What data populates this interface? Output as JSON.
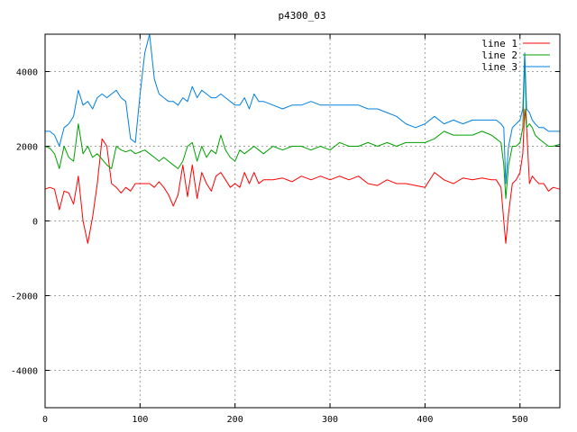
{
  "chart_data": {
    "type": "line",
    "title": "p4300_03",
    "xlabel": "",
    "ylabel": "",
    "xlim": [
      0,
      542
    ],
    "ylim": [
      -5000,
      5000
    ],
    "xticks": [
      0,
      100,
      200,
      300,
      400,
      500
    ],
    "yticks": [
      -4000,
      -2000,
      0,
      2000,
      4000
    ],
    "grid": true,
    "legend_position": "top-right",
    "series": [
      {
        "name": "line 1",
        "color": "#ff0000",
        "x": [
          0,
          5,
          10,
          15,
          20,
          25,
          30,
          35,
          40,
          45,
          50,
          55,
          60,
          65,
          70,
          75,
          80,
          85,
          90,
          95,
          100,
          105,
          110,
          115,
          120,
          125,
          130,
          135,
          140,
          145,
          150,
          155,
          160,
          165,
          170,
          175,
          180,
          185,
          190,
          195,
          200,
          205,
          210,
          215,
          220,
          225,
          230,
          240,
          250,
          260,
          270,
          280,
          290,
          300,
          310,
          320,
          330,
          340,
          350,
          360,
          370,
          380,
          390,
          400,
          410,
          420,
          430,
          440,
          450,
          460,
          470,
          475,
          480,
          483,
          485,
          488,
          492,
          496,
          500,
          503,
          505,
          507,
          510,
          513,
          516,
          520,
          525,
          530,
          535,
          542
        ],
        "values": [
          850,
          900,
          850,
          300,
          800,
          750,
          450,
          1200,
          0,
          -600,
          100,
          1000,
          2200,
          2000,
          1000,
          900,
          750,
          900,
          800,
          1000,
          1000,
          1000,
          1000,
          900,
          1050,
          900,
          700,
          400,
          700,
          1500,
          650,
          1500,
          600,
          1300,
          1000,
          800,
          1200,
          1300,
          1100,
          900,
          1000,
          900,
          1300,
          1000,
          1300,
          1000,
          1100,
          1100,
          1150,
          1050,
          1200,
          1100,
          1200,
          1100,
          1200,
          1100,
          1200,
          1000,
          950,
          1100,
          1000,
          1000,
          950,
          900,
          1300,
          1100,
          1000,
          1150,
          1100,
          1150,
          1100,
          1100,
          900,
          0,
          -600,
          200,
          1000,
          1100,
          1300,
          1800,
          3000,
          2500,
          1000,
          1200,
          1100,
          1000,
          1000,
          800,
          900,
          850
        ]
      },
      {
        "name": "line 2",
        "color": "#00a000",
        "x": [
          0,
          5,
          10,
          15,
          20,
          25,
          30,
          35,
          40,
          45,
          50,
          55,
          60,
          65,
          70,
          75,
          80,
          85,
          90,
          95,
          100,
          105,
          110,
          115,
          120,
          125,
          130,
          135,
          140,
          145,
          150,
          155,
          160,
          165,
          170,
          175,
          180,
          185,
          190,
          195,
          200,
          205,
          210,
          215,
          220,
          225,
          230,
          240,
          250,
          260,
          270,
          280,
          290,
          300,
          310,
          320,
          330,
          340,
          350,
          360,
          370,
          380,
          390,
          400,
          410,
          420,
          430,
          440,
          450,
          460,
          470,
          475,
          480,
          483,
          485,
          488,
          492,
          496,
          500,
          503,
          505,
          507,
          510,
          513,
          516,
          520,
          525,
          530,
          535,
          542
        ],
        "values": [
          2000,
          1950,
          1800,
          1400,
          2000,
          1700,
          1600,
          2600,
          1800,
          2000,
          1700,
          1800,
          1650,
          1500,
          1400,
          2000,
          1900,
          1850,
          1900,
          1800,
          1850,
          1900,
          1800,
          1700,
          1600,
          1700,
          1600,
          1500,
          1400,
          1600,
          2000,
          2100,
          1600,
          2000,
          1700,
          1900,
          1800,
          2300,
          1900,
          1700,
          1600,
          1900,
          1800,
          1900,
          2000,
          1900,
          1800,
          2000,
          1900,
          2000,
          2000,
          1900,
          2000,
          1900,
          2100,
          2000,
          2000,
          2100,
          2000,
          2100,
          2000,
          2100,
          2100,
          2100,
          2200,
          2400,
          2300,
          2300,
          2300,
          2400,
          2300,
          2200,
          2100,
          1500,
          600,
          1500,
          2000,
          2000,
          2100,
          2500,
          4400,
          2500,
          2600,
          2500,
          2300,
          2200,
          2100,
          2000,
          2000,
          2050
        ]
      },
      {
        "name": "line 3",
        "color": "#0080e0",
        "x": [
          0,
          5,
          10,
          15,
          20,
          25,
          30,
          35,
          40,
          45,
          50,
          55,
          60,
          65,
          70,
          75,
          80,
          85,
          90,
          95,
          100,
          105,
          110,
          115,
          120,
          125,
          130,
          135,
          140,
          145,
          150,
          155,
          160,
          165,
          170,
          175,
          180,
          185,
          190,
          195,
          200,
          205,
          210,
          215,
          220,
          225,
          230,
          240,
          250,
          260,
          270,
          280,
          290,
          300,
          310,
          320,
          330,
          340,
          350,
          360,
          370,
          380,
          390,
          400,
          410,
          420,
          430,
          440,
          450,
          460,
          470,
          475,
          480,
          483,
          485,
          488,
          492,
          496,
          500,
          503,
          505,
          507,
          510,
          513,
          516,
          520,
          525,
          530,
          535,
          542
        ],
        "values": [
          2400,
          2400,
          2300,
          2000,
          2500,
          2600,
          2800,
          3500,
          3100,
          3200,
          3000,
          3300,
          3400,
          3300,
          3400,
          3500,
          3300,
          3200,
          2200,
          2100,
          3400,
          4500,
          5000,
          3800,
          3400,
          3300,
          3200,
          3200,
          3100,
          3300,
          3200,
          3600,
          3300,
          3500,
          3400,
          3300,
          3300,
          3400,
          3300,
          3200,
          3100,
          3100,
          3300,
          3000,
          3400,
          3200,
          3200,
          3100,
          3000,
          3100,
          3100,
          3200,
          3100,
          3100,
          3100,
          3100,
          3100,
          3000,
          3000,
          2900,
          2800,
          2600,
          2500,
          2600,
          2800,
          2600,
          2700,
          2600,
          2700,
          2700,
          2700,
          2700,
          2600,
          2500,
          1000,
          2000,
          2500,
          2600,
          2700,
          3000,
          4500,
          3000,
          2900,
          2700,
          2600,
          2500,
          2500,
          2400,
          2400,
          2400
        ]
      }
    ]
  }
}
